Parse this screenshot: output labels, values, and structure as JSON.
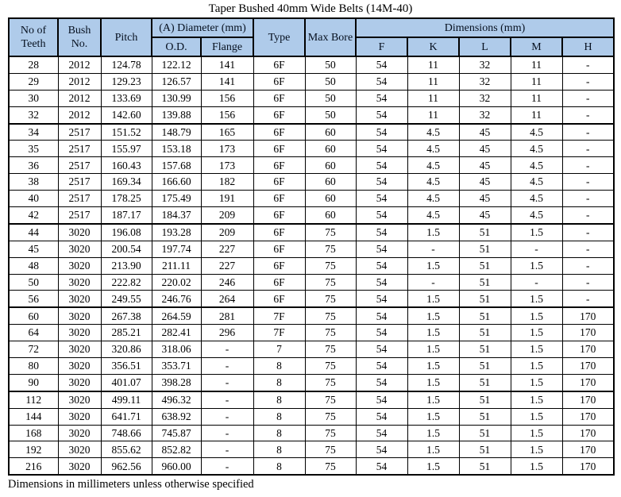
{
  "title": "Taper Bushed 40mm Wide Belts (14M-40)",
  "footer_note": "Dimensions in millimeters unless otherwise specified",
  "style": {
    "header_bg": "#AFCBEA",
    "border_color": "#000000"
  },
  "table": {
    "header": {
      "no_of_teeth": "No of Teeth",
      "bush_no": "Bush No.",
      "pitch": "Pitch",
      "diameter_group": "(A) Diameter (mm)",
      "od": "O.D.",
      "flange": "Flange",
      "type": "Type",
      "max_bore": "Max Bore",
      "dimensions_group": "Dimensions (mm)",
      "f": "F",
      "k": "K",
      "l": "L",
      "m": "M",
      "h": "H"
    },
    "rows": [
      [
        "28",
        "2012",
        "124.78",
        "122.12",
        "141",
        "6F",
        "50",
        "54",
        "11",
        "32",
        "11",
        "-"
      ],
      [
        "29",
        "2012",
        "129.23",
        "126.57",
        "141",
        "6F",
        "50",
        "54",
        "11",
        "32",
        "11",
        "-"
      ],
      [
        "30",
        "2012",
        "133.69",
        "130.99",
        "156",
        "6F",
        "50",
        "54",
        "11",
        "32",
        "11",
        "-"
      ],
      [
        "32",
        "2012",
        "142.60",
        "139.88",
        "156",
        "6F",
        "50",
        "54",
        "11",
        "32",
        "11",
        "-"
      ],
      [
        "34",
        "2517",
        "151.52",
        "148.79",
        "165",
        "6F",
        "60",
        "54",
        "4.5",
        "45",
        "4.5",
        "-"
      ],
      [
        "35",
        "2517",
        "155.97",
        "153.18",
        "173",
        "6F",
        "60",
        "54",
        "4.5",
        "45",
        "4.5",
        "-"
      ],
      [
        "36",
        "2517",
        "160.43",
        "157.68",
        "173",
        "6F",
        "60",
        "54",
        "4.5",
        "45",
        "4.5",
        "-"
      ],
      [
        "38",
        "2517",
        "169.34",
        "166.60",
        "182",
        "6F",
        "60",
        "54",
        "4.5",
        "45",
        "4.5",
        "-"
      ],
      [
        "40",
        "2517",
        "178.25",
        "175.49",
        "191",
        "6F",
        "60",
        "54",
        "4.5",
        "45",
        "4.5",
        "-"
      ],
      [
        "42",
        "2517",
        "187.17",
        "184.37",
        "209",
        "6F",
        "60",
        "54",
        "4.5",
        "45",
        "4.5",
        "-"
      ],
      [
        "44",
        "3020",
        "196.08",
        "193.28",
        "209",
        "6F",
        "75",
        "54",
        "1.5",
        "51",
        "1.5",
        "-"
      ],
      [
        "45",
        "3020",
        "200.54",
        "197.74",
        "227",
        "6F",
        "75",
        "54",
        "-",
        "51",
        "-",
        "-"
      ],
      [
        "48",
        "3020",
        "213.90",
        "211.11",
        "227",
        "6F",
        "75",
        "54",
        "1.5",
        "51",
        "1.5",
        "-"
      ],
      [
        "50",
        "3020",
        "222.82",
        "220.02",
        "246",
        "6F",
        "75",
        "54",
        "-",
        "51",
        "-",
        "-"
      ],
      [
        "56",
        "3020",
        "249.55",
        "246.76",
        "264",
        "6F",
        "75",
        "54",
        "1.5",
        "51",
        "1.5",
        "-"
      ],
      [
        "60",
        "3020",
        "267.38",
        "264.59",
        "281",
        "7F",
        "75",
        "54",
        "1.5",
        "51",
        "1.5",
        "170"
      ],
      [
        "64",
        "3020",
        "285.21",
        "282.41",
        "296",
        "7F",
        "75",
        "54",
        "1.5",
        "51",
        "1.5",
        "170"
      ],
      [
        "72",
        "3020",
        "320.86",
        "318.06",
        "-",
        "7",
        "75",
        "54",
        "1.5",
        "51",
        "1.5",
        "170"
      ],
      [
        "80",
        "3020",
        "356.51",
        "353.71",
        "-",
        "8",
        "75",
        "54",
        "1.5",
        "51",
        "1.5",
        "170"
      ],
      [
        "90",
        "3020",
        "401.07",
        "398.28",
        "-",
        "8",
        "75",
        "54",
        "1.5",
        "51",
        "1.5",
        "170"
      ],
      [
        "112",
        "3020",
        "499.11",
        "496.32",
        "-",
        "8",
        "75",
        "54",
        "1.5",
        "51",
        "1.5",
        "170"
      ],
      [
        "144",
        "3020",
        "641.71",
        "638.92",
        "-",
        "8",
        "75",
        "54",
        "1.5",
        "51",
        "1.5",
        "170"
      ],
      [
        "168",
        "3020",
        "748.66",
        "745.87",
        "-",
        "8",
        "75",
        "54",
        "1.5",
        "51",
        "1.5",
        "170"
      ],
      [
        "192",
        "3020",
        "855.62",
        "852.82",
        "-",
        "8",
        "75",
        "54",
        "1.5",
        "51",
        "1.5",
        "170"
      ],
      [
        "216",
        "3020",
        "962.56",
        "960.00",
        "-",
        "8",
        "75",
        "54",
        "1.5",
        "51",
        "1.5",
        "170"
      ]
    ]
  }
}
